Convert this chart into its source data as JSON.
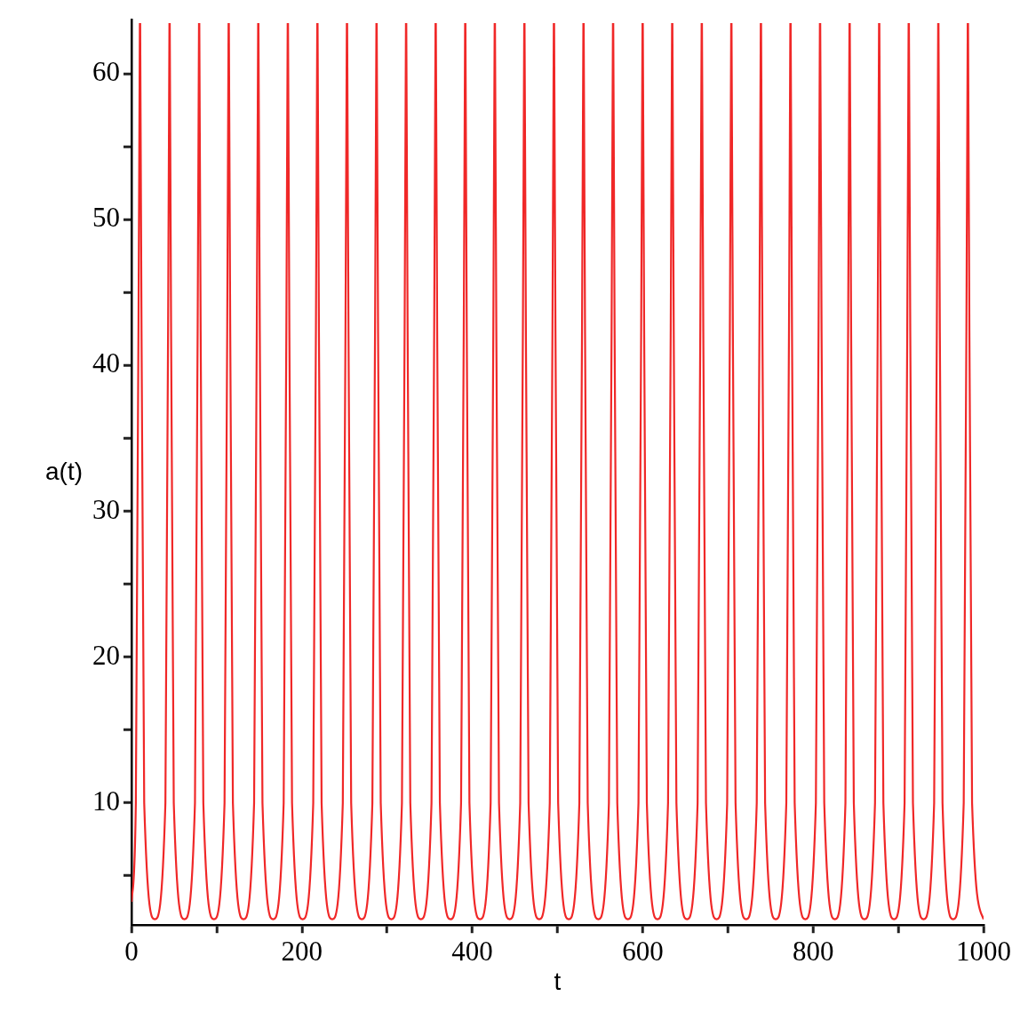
{
  "chart_data": {
    "type": "line",
    "xlabel": "t",
    "ylabel": "a(t)",
    "xlim": [
      0,
      1000
    ],
    "ylim": [
      1.6,
      63.7
    ],
    "xticks": [
      0,
      {
        "value": 100,
        "label": null
      },
      200,
      {
        "value": 300,
        "label": null
      },
      400,
      {
        "value": 500,
        "label": null
      },
      600,
      {
        "value": 700,
        "label": null
      },
      800,
      {
        "value": 900,
        "label": null
      },
      1000
    ],
    "yticks": [
      {
        "value": 5,
        "label": null
      },
      10,
      {
        "value": 15,
        "label": null
      },
      20,
      {
        "value": 25,
        "label": null
      },
      30,
      {
        "value": 35,
        "label": null
      },
      40,
      {
        "value": 45,
        "label": null
      },
      50,
      {
        "value": 55,
        "label": null
      },
      60
    ],
    "marker": "none",
    "line_style": "solid",
    "series": [
      {
        "color": "#f02828",
        "x": [
          0,
          5.1,
          9.8,
          10.0,
          10.2,
          14.9,
          27.4,
          39.8,
          44.5,
          44.7,
          44.9,
          49.6,
          62.1,
          74.5,
          79.2,
          79.4,
          79.6,
          84.3,
          96.8,
          109.2,
          113.9,
          114.1,
          114.3,
          119.0,
          131.5,
          143.9,
          148.6,
          148.8,
          149.0,
          153.7,
          166.2,
          178.6,
          183.3,
          183.5,
          183.7,
          188.4,
          200.9,
          213.3,
          218.0,
          218.2,
          218.4,
          223.1,
          235.6,
          248.0,
          252.7,
          252.9,
          253.1,
          257.8,
          270.3,
          282.7,
          287.4,
          287.6,
          287.8,
          292.5,
          305.0,
          317.4,
          322.1,
          322.3,
          322.5,
          327.2,
          339.7,
          352.1,
          356.8,
          357.0,
          357.2,
          361.9,
          374.4,
          386.8,
          391.5,
          391.7,
          391.9,
          396.6,
          409.1,
          421.5,
          426.2,
          426.4,
          426.6,
          431.3,
          443.8,
          456.2,
          460.9,
          461.1,
          461.3,
          466.0,
          478.5,
          490.9,
          495.6,
          495.8,
          496.0,
          500.7,
          513.2,
          525.6,
          530.3,
          530.5,
          530.7,
          535.4,
          547.9,
          560.3,
          565.0,
          565.2,
          565.4,
          570.1,
          582.6,
          595.0,
          599.7,
          599.9,
          600.1,
          604.8,
          617.3,
          629.7,
          634.4,
          634.6,
          634.8,
          639.5,
          652.0,
          664.4,
          669.1,
          669.3,
          669.5,
          674.2,
          686.7,
          699.1,
          703.8,
          704.0,
          704.2,
          708.9,
          721.4,
          733.8,
          738.5,
          738.7,
          738.9,
          743.6,
          756.1,
          768.5,
          773.2,
          773.4,
          773.6,
          778.3,
          790.8,
          803.2,
          807.9,
          808.1,
          808.3,
          813.0,
          825.5,
          837.9,
          842.6,
          842.8,
          843.0,
          847.7,
          860.2,
          872.6,
          877.3,
          877.5,
          877.7,
          882.4,
          894.9,
          907.3,
          912.0,
          912.2,
          912.4,
          917.1,
          929.6,
          942.0,
          946.7,
          946.9,
          947.1,
          951.8,
          964.3,
          976.7,
          981.4,
          981.6,
          981.8,
          986.5,
          1000
        ],
        "values": [
          3.2,
          10,
          63.5,
          null,
          63.5,
          10,
          2.0,
          10,
          63.5,
          null,
          63.5,
          10,
          2.0,
          10,
          63.5,
          null,
          63.5,
          10,
          2.0,
          10,
          63.5,
          null,
          63.5,
          10,
          2.0,
          10,
          63.5,
          null,
          63.5,
          10,
          2.0,
          10,
          63.5,
          null,
          63.5,
          10,
          2.0,
          10,
          63.5,
          null,
          63.5,
          10,
          2.0,
          10,
          63.5,
          null,
          63.5,
          10,
          2.0,
          10,
          63.5,
          null,
          63.5,
          10,
          2.0,
          10,
          63.5,
          null,
          63.5,
          10,
          2.0,
          10,
          63.5,
          null,
          63.5,
          10,
          2.0,
          10,
          63.5,
          null,
          63.5,
          10,
          2.0,
          10,
          63.5,
          null,
          63.5,
          10,
          2.0,
          10,
          63.5,
          null,
          63.5,
          10,
          2.0,
          10,
          63.5,
          null,
          63.5,
          10,
          2.0,
          10,
          63.5,
          null,
          63.5,
          10,
          2.0,
          10,
          63.5,
          null,
          63.5,
          10,
          2.0,
          10,
          63.5,
          null,
          63.5,
          10,
          2.0,
          10,
          63.5,
          null,
          63.5,
          10,
          2.0,
          10,
          63.5,
          null,
          63.5,
          10,
          2.0,
          10,
          63.5,
          null,
          63.5,
          10,
          2.0,
          10,
          63.5,
          null,
          63.5,
          10,
          2.0,
          10,
          63.5,
          null,
          63.5,
          10,
          2.0,
          10,
          63.5,
          null,
          63.5,
          10,
          2.0,
          10,
          63.5,
          null,
          63.5,
          10,
          2.0,
          10,
          63.5,
          null,
          63.5,
          10,
          2.0,
          10,
          63.5,
          null,
          63.5,
          10,
          2.0,
          10,
          63.5,
          null,
          63.5,
          10,
          2.0,
          10,
          63.5,
          null,
          63.5,
          10,
          2.0
        ]
      }
    ]
  }
}
